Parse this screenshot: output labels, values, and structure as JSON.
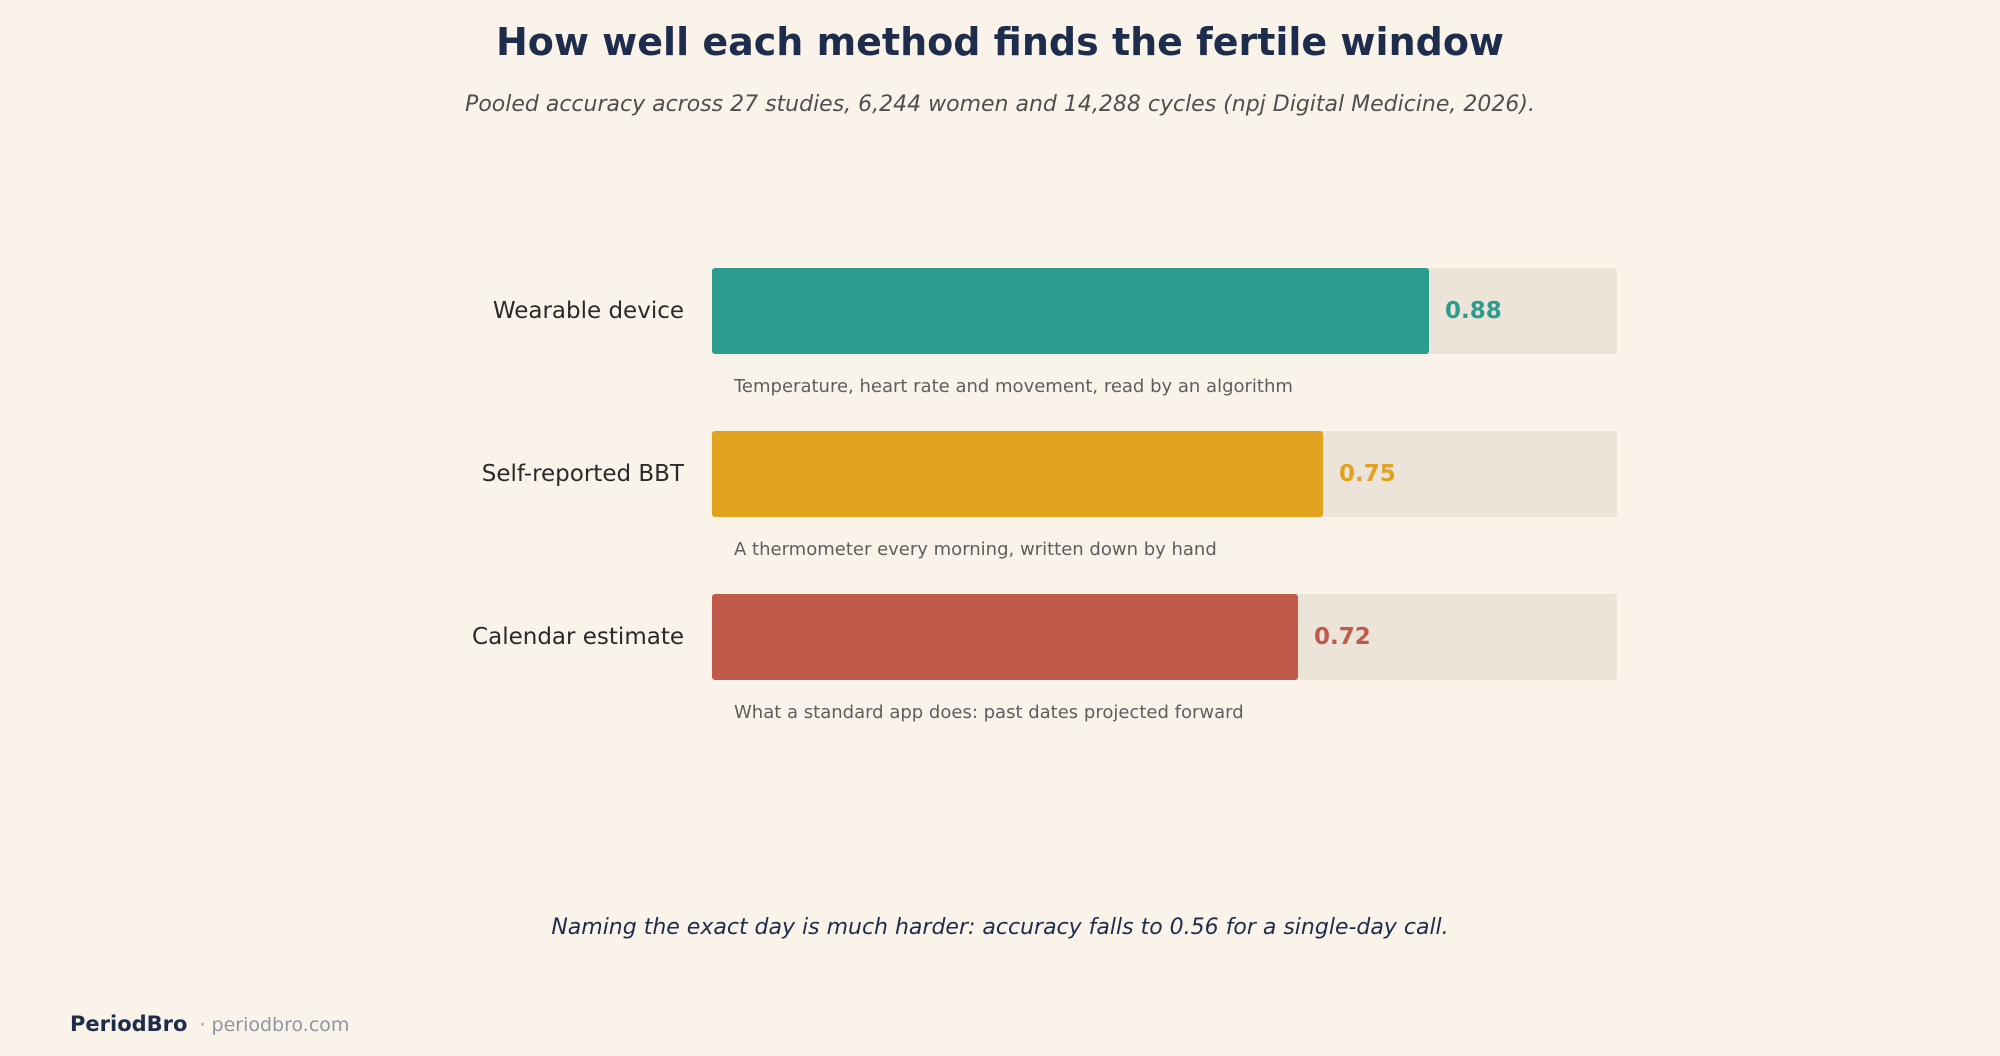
{
  "chart_data": {
    "type": "bar",
    "orientation": "horizontal",
    "title": "How well each method finds the fertile window",
    "subtitle": "Pooled accuracy across 27 studies, 6,244 women and 14,288 cycles (npj Digital Medicine, 2026).",
    "xlim": [
      0,
      1
    ],
    "grid": false,
    "categories": [
      "Wearable device",
      "Self-reported BBT",
      "Calendar estimate"
    ],
    "values": [
      0.88,
      0.75,
      0.72
    ],
    "value_labels": [
      "0.88",
      "0.75",
      "0.72"
    ],
    "descriptions": [
      "Temperature, heart rate and movement, read by an algorithm",
      "A thermometer every morning, written down by hand",
      "What a standard app does: past dates projected forward"
    ],
    "colors": [
      "#2A9D8F",
      "#E0A21F",
      "#C05B4C"
    ],
    "annotation": "Naming the exact day is much harder: accuracy falls to 0.56 for a single-day call."
  },
  "footer": {
    "brand": "PeriodBro",
    "site": "· periodbro.com"
  }
}
